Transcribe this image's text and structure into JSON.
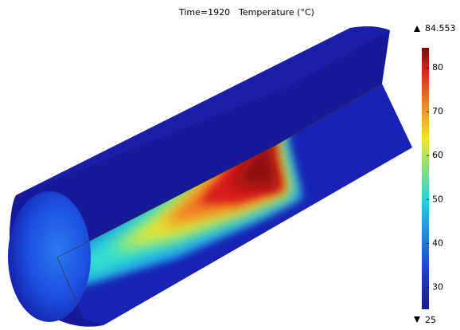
{
  "chart_data": {
    "type": "surface",
    "title": "Time=1920",
    "subtitle": "Temperature (°C)",
    "clim": [
      25,
      84.553
    ],
    "cticks": [
      30,
      40,
      50,
      60,
      70,
      80
    ]
  }
}
